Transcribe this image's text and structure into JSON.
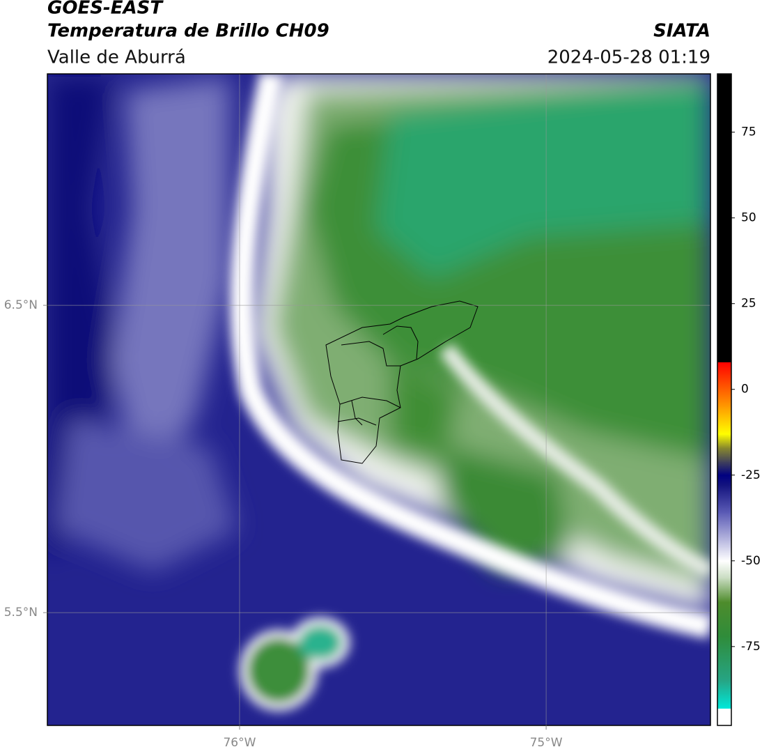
{
  "chart_data": {
    "type": "map",
    "title": "GOES-EAST",
    "subtitle": "Temperatura de Brillo CH09",
    "region": "Valle de Aburrá",
    "source": "SIATA",
    "timestamp": "2024-05-28 01:19",
    "xlim": [
      -76.627,
      -74.464
    ],
    "ylim": [
      5.133,
      7.253
    ],
    "xticks": [
      {
        "value": -76,
        "label": "76°W"
      },
      {
        "value": -75,
        "label": "75°W"
      }
    ],
    "yticks": [
      {
        "value": 6.5,
        "label": "6.5°N"
      },
      {
        "value": 5.5,
        "label": "5.5°N"
      }
    ],
    "grid": true,
    "colorbar": {
      "lim": [
        -98,
        92
      ],
      "ticks": [
        -75,
        -50,
        -25,
        0,
        25,
        50,
        75
      ],
      "colormap": [
        {
          "value": -98,
          "color": "#ffffff"
        },
        {
          "value": -93,
          "color": "#ffffff"
        },
        {
          "value": -93,
          "color": "#00e8da"
        },
        {
          "value": -85,
          "color": "#26a585"
        },
        {
          "value": -72,
          "color": "#2f8c3a"
        },
        {
          "value": -62,
          "color": "#4e8c2c"
        },
        {
          "value": -55,
          "color": "#c9dcc1"
        },
        {
          "value": -50,
          "color": "#ffffff"
        },
        {
          "value": -44,
          "color": "#b9b9e0"
        },
        {
          "value": -36,
          "color": "#5c5cb6"
        },
        {
          "value": -28,
          "color": "#14147f"
        },
        {
          "value": -25,
          "color": "#000080"
        },
        {
          "value": -21,
          "color": "#43435a"
        },
        {
          "value": -17,
          "color": "#8a8a2c"
        },
        {
          "value": -13,
          "color": "#ffff00"
        },
        {
          "value": -5,
          "color": "#ff9a00"
        },
        {
          "value": 8,
          "color": "#ff0000"
        },
        {
          "value": 8,
          "color": "#000000"
        },
        {
          "value": 92,
          "color": "#000000"
        }
      ]
    }
  }
}
